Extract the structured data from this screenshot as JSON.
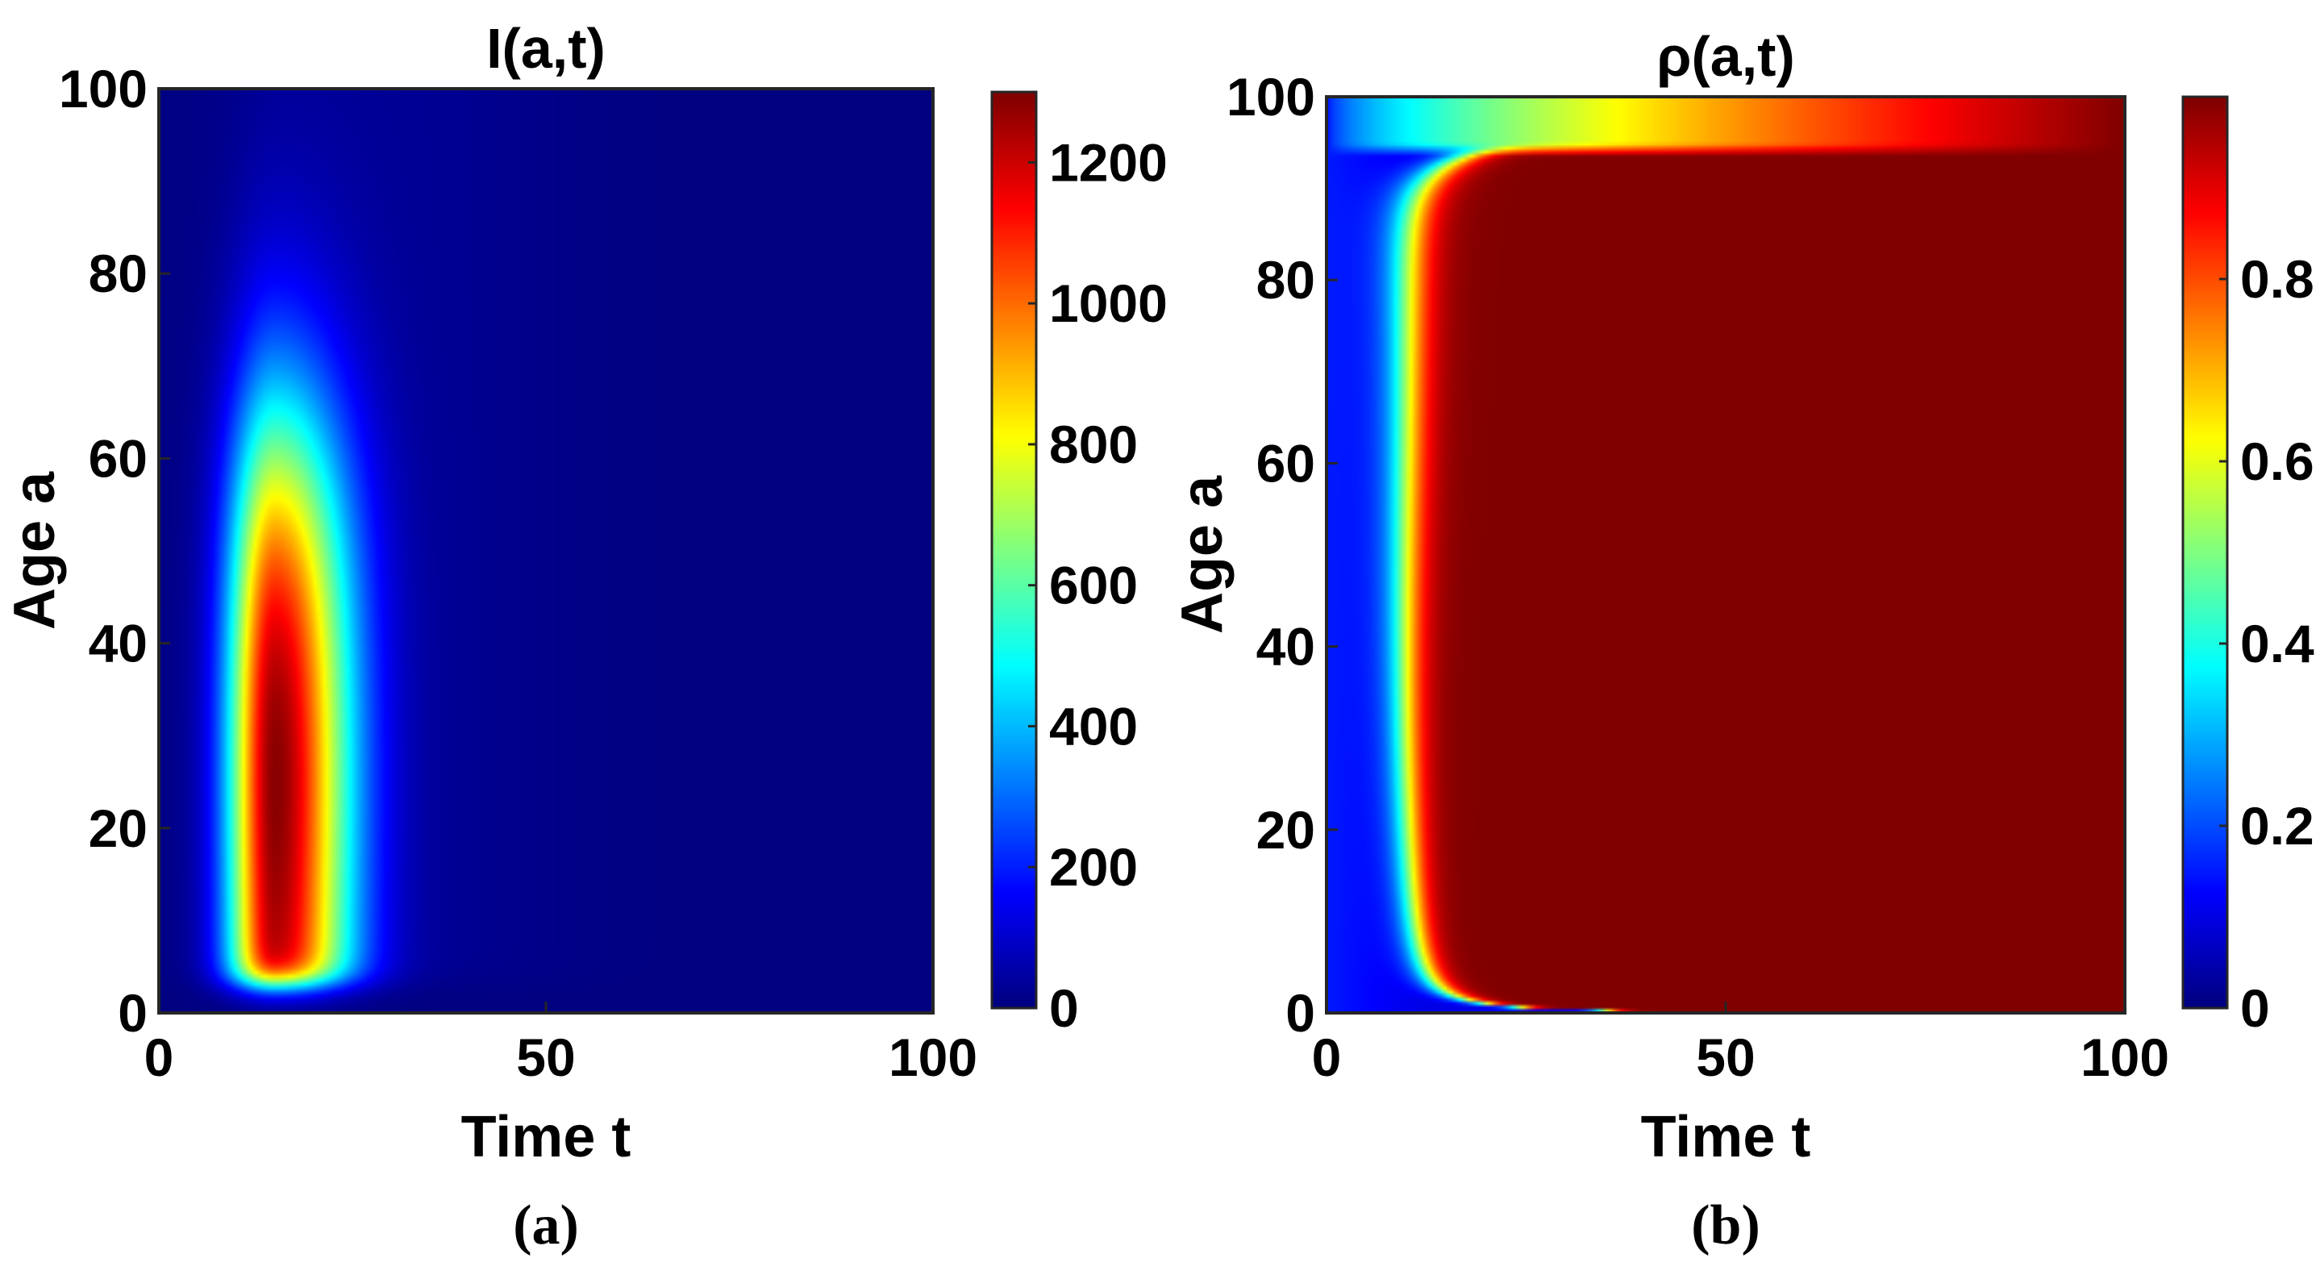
{
  "figure": {
    "panels": [
      {
        "id": "a",
        "caption": "(a)",
        "title": "I(a,t)",
        "xlabel": "Time t",
        "ylabel": "Age a"
      },
      {
        "id": "b",
        "caption": "(b)",
        "title": "ρ(a,t)",
        "xlabel": "Time t",
        "ylabel": "Age a"
      }
    ]
  },
  "colormap": "jet",
  "chart_data": [
    {
      "type": "heatmap",
      "title": "I(a,t)",
      "xlabel": "Time t",
      "ylabel": "Age a",
      "xlim": [
        0,
        100
      ],
      "ylim": [
        0,
        100
      ],
      "x_ticks": [
        "0",
        "50",
        "100"
      ],
      "y_ticks": [
        "0",
        "20",
        "40",
        "60",
        "80",
        "100"
      ],
      "colorbar": {
        "range": [
          0,
          1300
        ],
        "ticks": [
          "0",
          "200",
          "400",
          "600",
          "800",
          "1000",
          "1200"
        ]
      },
      "description_values": {
        "peak_time": 15,
        "peak_age_range": [
          5,
          60
        ],
        "peak_value": 1300,
        "active_time_range": [
          7,
          35
        ],
        "background_value": 0
      }
    },
    {
      "type": "heatmap",
      "title": "ρ(a,t)",
      "xlabel": "Time t",
      "ylabel": "Age a",
      "xlim": [
        0,
        100
      ],
      "ylim": [
        0,
        100
      ],
      "x_ticks": [
        "0",
        "50",
        "100"
      ],
      "y_ticks": [
        "0",
        "20",
        "40",
        "60",
        "80",
        "100"
      ],
      "colorbar": {
        "range": [
          0,
          1
        ],
        "ticks": [
          "0",
          "0.2",
          "0.4",
          "0.6",
          "0.8"
        ]
      },
      "description_values": {
        "saturation_value": 1,
        "front_time_midage": 9,
        "top_band_age": 94,
        "low_value_initial": 0.1
      }
    }
  ]
}
